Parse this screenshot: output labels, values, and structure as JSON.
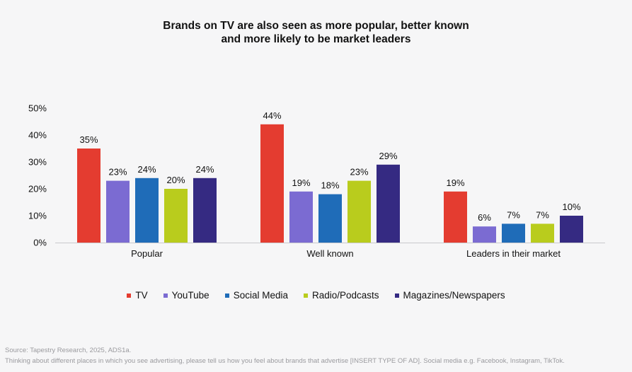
{
  "chart_data": {
    "type": "bar",
    "title_lines": [
      "Brands on TV are also seen as more popular, better known",
      "and more likely to be market leaders"
    ],
    "categories": [
      "Popular",
      "Well known",
      "Leaders in their market"
    ],
    "series": [
      {
        "name": "TV",
        "color": "#e43c30",
        "values": [
          35,
          44,
          19
        ]
      },
      {
        "name": "YouTube",
        "color": "#7b6bd2",
        "values": [
          23,
          19,
          6
        ]
      },
      {
        "name": "Social Media",
        "color": "#1f6cb8",
        "values": [
          24,
          18,
          7
        ]
      },
      {
        "name": "Radio/Podcasts",
        "color": "#b9cc1d",
        "values": [
          20,
          23,
          7
        ]
      },
      {
        "name": "Magazines/Newspapers",
        "color": "#352a82",
        "values": [
          24,
          29,
          10
        ]
      }
    ],
    "y_ticks": [
      "0%",
      "10%",
      "20%",
      "30%",
      "40%",
      "50%"
    ],
    "ylim": [
      0,
      50
    ],
    "value_suffix": "%",
    "xlabel": "",
    "ylabel": "",
    "legend_position": "bottom",
    "grid": false
  },
  "footer": {
    "source": "Source: Tapestry Research, 2025, ADS1a.",
    "question": "Thinking about different places in which you see advertising, please tell us how you feel about brands that advertise [INSERT TYPE OF AD]. Social media e.g. Facebook, Instagram, TikTok."
  }
}
